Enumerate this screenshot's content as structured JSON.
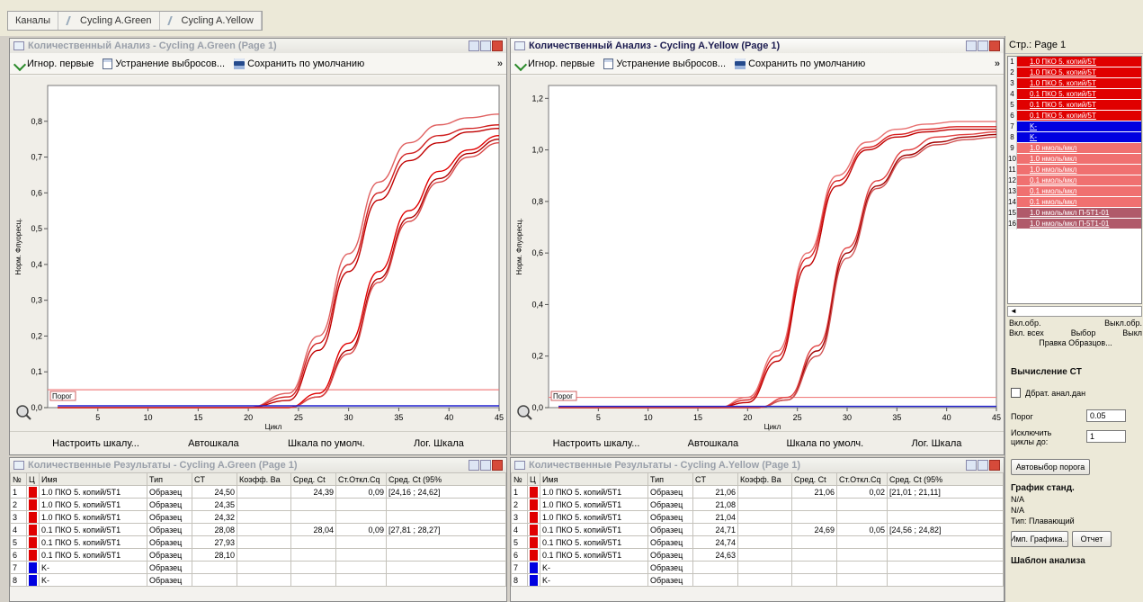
{
  "tabs": [
    {
      "label": "Каналы"
    },
    {
      "label": "Cycling A.Green"
    },
    {
      "label": "Cycling A.Yellow"
    }
  ],
  "toolbar": {
    "ignore_first": "Игнор. первые",
    "remove_outliers": "Устранение выбросов...",
    "save_default": "Сохранить по умолчанию",
    "more": "»"
  },
  "chart_buttons": {
    "adjust": "Настроить шкалу...",
    "auto": "Автошкала",
    "default": "Шкала по умолч.",
    "log": "Лог. Шкала"
  },
  "colors": {
    "red": "#e00000",
    "blue": "#0000e0",
    "pink": "#f08080",
    "mauve": "#b05a6a"
  },
  "green_window": {
    "title": "Количественный Анализ - Cycling A.Green (Page 1)",
    "results_title": "Количественные Результаты - Cycling A.Green (Page 1)"
  },
  "yellow_window": {
    "title": "Количественный Анализ - Cycling A.Yellow (Page 1)",
    "results_title": "Количественные Результаты - Cycling A.Yellow (Page 1)"
  },
  "chart_data": [
    {
      "type": "line",
      "xlabel": "Цикл",
      "ylabel": "Норм. Флуоресц.",
      "xlim": [
        0,
        45
      ],
      "ylim": [
        0,
        0.9
      ],
      "xticks": [
        5,
        10,
        15,
        20,
        25,
        30,
        35,
        40,
        45
      ],
      "yticks": [
        0.0,
        0.1,
        0.2,
        0.3,
        0.4,
        0.5,
        0.6,
        0.7,
        0.8
      ],
      "ytick_labels": [
        "0,0",
        "0,1",
        "0,2",
        "0,3",
        "0,4",
        "0,5",
        "0,6",
        "0,7",
        "0,8"
      ],
      "threshold": 0.05,
      "threshold_label": "Порог",
      "grid": false,
      "series": [
        {
          "color": "#e06060",
          "x": [
            1,
            20,
            24,
            27,
            30,
            33,
            36,
            39,
            42,
            45
          ],
          "y": [
            0.0,
            0.0,
            0.04,
            0.2,
            0.43,
            0.63,
            0.74,
            0.79,
            0.81,
            0.82
          ]
        },
        {
          "color": "#d02020",
          "x": [
            1,
            20,
            24,
            27,
            30,
            33,
            36,
            39,
            42,
            45
          ],
          "y": [
            0.0,
            0.0,
            0.03,
            0.18,
            0.4,
            0.6,
            0.71,
            0.76,
            0.78,
            0.79
          ]
        },
        {
          "color": "#c00000",
          "x": [
            1,
            20,
            24,
            27,
            30,
            33,
            36,
            39,
            42,
            45
          ],
          "y": [
            0.0,
            0.0,
            0.02,
            0.16,
            0.38,
            0.58,
            0.69,
            0.74,
            0.77,
            0.78
          ]
        },
        {
          "color": "#e00000",
          "x": [
            1,
            24,
            27,
            30,
            33,
            36,
            39,
            42,
            45
          ],
          "y": [
            0.0,
            0.0,
            0.04,
            0.18,
            0.38,
            0.55,
            0.66,
            0.72,
            0.76
          ]
        },
        {
          "color": "#b00000",
          "x": [
            1,
            24,
            27,
            30,
            33,
            36,
            39,
            42,
            45
          ],
          "y": [
            0.0,
            0.0,
            0.03,
            0.16,
            0.36,
            0.53,
            0.64,
            0.71,
            0.75
          ]
        },
        {
          "color": "#d84848",
          "x": [
            1,
            24,
            27,
            30,
            33,
            36,
            39,
            42,
            45
          ],
          "y": [
            0.0,
            0.0,
            0.03,
            0.15,
            0.35,
            0.52,
            0.63,
            0.7,
            0.74
          ]
        },
        {
          "color": "#2020d0",
          "x": [
            1,
            45
          ],
          "y": [
            0.005,
            0.005
          ]
        }
      ]
    },
    {
      "type": "line",
      "xlabel": "Цикл",
      "ylabel": "Норм. Флуоресц.",
      "xlim": [
        0,
        45
      ],
      "ylim": [
        0,
        1.25
      ],
      "xticks": [
        5,
        10,
        15,
        20,
        25,
        30,
        35,
        40,
        45
      ],
      "yticks": [
        0.0,
        0.2,
        0.4,
        0.6,
        0.8,
        1.0,
        1.2
      ],
      "ytick_labels": [
        "0,0",
        "0,2",
        "0,4",
        "0,6",
        "0,8",
        "1,0",
        "1,2"
      ],
      "threshold": 0.04,
      "threshold_label": "Порог",
      "grid": false,
      "series": [
        {
          "color": "#e87070",
          "x": [
            1,
            17,
            20,
            23,
            26,
            29,
            32,
            35,
            38,
            41,
            45
          ],
          "y": [
            0.0,
            0.0,
            0.04,
            0.22,
            0.6,
            0.9,
            1.03,
            1.08,
            1.1,
            1.11,
            1.11
          ]
        },
        {
          "color": "#d82020",
          "x": [
            1,
            17,
            20,
            23,
            26,
            29,
            32,
            35,
            38,
            41,
            45
          ],
          "y": [
            0.0,
            0.0,
            0.03,
            0.2,
            0.58,
            0.88,
            1.01,
            1.06,
            1.08,
            1.09,
            1.09
          ]
        },
        {
          "color": "#c00000",
          "x": [
            1,
            17,
            20,
            23,
            26,
            29,
            32,
            35,
            38,
            41,
            45
          ],
          "y": [
            0.0,
            0.0,
            0.02,
            0.18,
            0.55,
            0.86,
            1.0,
            1.05,
            1.07,
            1.08,
            1.08
          ]
        },
        {
          "color": "#e04040",
          "x": [
            1,
            21,
            24,
            27,
            30,
            33,
            36,
            39,
            42,
            45
          ],
          "y": [
            0.0,
            0.0,
            0.04,
            0.24,
            0.62,
            0.88,
            1.0,
            1.05,
            1.06,
            1.07
          ]
        },
        {
          "color": "#a00000",
          "x": [
            1,
            21,
            24,
            27,
            30,
            33,
            36,
            39,
            42,
            45
          ],
          "y": [
            0.0,
            0.0,
            0.03,
            0.22,
            0.6,
            0.86,
            0.98,
            1.03,
            1.05,
            1.06
          ]
        },
        {
          "color": "#d05050",
          "x": [
            1,
            21,
            24,
            27,
            30,
            33,
            36,
            39,
            42,
            45
          ],
          "y": [
            0.0,
            0.0,
            0.03,
            0.2,
            0.58,
            0.85,
            0.97,
            1.02,
            1.04,
            1.05
          ]
        },
        {
          "color": "#2020d0",
          "x": [
            1,
            45
          ],
          "y": [
            0.005,
            0.005
          ]
        }
      ]
    }
  ],
  "green_table": {
    "headers": [
      "№",
      "Ц",
      "Имя",
      "Тип",
      "CT",
      "Коэфф. Ва",
      "Сред. Ct",
      "Ст.Откл.Cq",
      "Сред. Ct (95%"
    ],
    "rows": [
      {
        "n": "1",
        "color": "#e00000",
        "name": "1.0 ПКО 5. копий/5Т1",
        "type": "Образец",
        "ct": "24,50",
        "kf": "",
        "avg": "24,39",
        "sd": "0,09",
        "ci": "[24,16 ; 24,62]"
      },
      {
        "n": "2",
        "color": "#e00000",
        "name": "1.0 ПКО 5. копий/5Т1",
        "type": "Образец",
        "ct": "24,35",
        "kf": "",
        "avg": "",
        "sd": "",
        "ci": ""
      },
      {
        "n": "3",
        "color": "#e00000",
        "name": "1.0 ПКО 5. копий/5Т1",
        "type": "Образец",
        "ct": "24,32",
        "kf": "",
        "avg": "",
        "sd": "",
        "ci": ""
      },
      {
        "n": "4",
        "color": "#e00000",
        "name": "0.1 ПКО 5. копий/5Т1",
        "type": "Образец",
        "ct": "28,08",
        "kf": "",
        "avg": "28,04",
        "sd": "0,09",
        "ci": "[27,81 ; 28,27]"
      },
      {
        "n": "5",
        "color": "#e00000",
        "name": "0.1 ПКО 5. копий/5Т1",
        "type": "Образец",
        "ct": "27,93",
        "kf": "",
        "avg": "",
        "sd": "",
        "ci": ""
      },
      {
        "n": "6",
        "color": "#e00000",
        "name": "0.1 ПКО 5. копий/5Т1",
        "type": "Образец",
        "ct": "28,10",
        "kf": "",
        "avg": "",
        "sd": "",
        "ci": ""
      },
      {
        "n": "7",
        "color": "#0000e0",
        "name": "K-",
        "type": "Образец",
        "ct": "",
        "kf": "",
        "avg": "",
        "sd": "",
        "ci": ""
      },
      {
        "n": "8",
        "color": "#0000e0",
        "name": "K-",
        "type": "Образец",
        "ct": "",
        "kf": "",
        "avg": "",
        "sd": "",
        "ci": ""
      }
    ]
  },
  "yellow_table": {
    "headers": [
      "№",
      "Ц",
      "Имя",
      "Тип",
      "CT",
      "Коэфф. Ва",
      "Сред. Ct",
      "Ст.Откл.Cq",
      "Сред. Ct (95%"
    ],
    "rows": [
      {
        "n": "1",
        "color": "#e00000",
        "name": "1.0 ПКО 5. копий/5Т1",
        "type": "Образец",
        "ct": "21,06",
        "kf": "",
        "avg": "21,06",
        "sd": "0,02",
        "ci": "[21,01 ; 21,11]"
      },
      {
        "n": "2",
        "color": "#e00000",
        "name": "1.0 ПКО 5. копий/5Т1",
        "type": "Образец",
        "ct": "21,08",
        "kf": "",
        "avg": "",
        "sd": "",
        "ci": ""
      },
      {
        "n": "3",
        "color": "#e00000",
        "name": "1.0 ПКО 5. копий/5Т1",
        "type": "Образец",
        "ct": "21,04",
        "kf": "",
        "avg": "",
        "sd": "",
        "ci": ""
      },
      {
        "n": "4",
        "color": "#e00000",
        "name": "0.1 ПКО 5. копий/5Т1",
        "type": "Образец",
        "ct": "24,71",
        "kf": "",
        "avg": "24,69",
        "sd": "0,05",
        "ci": "[24,56 ; 24,82]"
      },
      {
        "n": "5",
        "color": "#e00000",
        "name": "0.1 ПКО 5. копий/5Т1",
        "type": "Образец",
        "ct": "24,74",
        "kf": "",
        "avg": "",
        "sd": "",
        "ci": ""
      },
      {
        "n": "6",
        "color": "#e00000",
        "name": "0.1 ПКО 5. копий/5Т1",
        "type": "Образец",
        "ct": "24,63",
        "kf": "",
        "avg": "",
        "sd": "",
        "ci": ""
      },
      {
        "n": "7",
        "color": "#0000e0",
        "name": "K-",
        "type": "Образец",
        "ct": "",
        "kf": "",
        "avg": "",
        "sd": "",
        "ci": ""
      },
      {
        "n": "8",
        "color": "#0000e0",
        "name": "K-",
        "type": "Образец",
        "ct": "",
        "kf": "",
        "avg": "",
        "sd": "",
        "ci": ""
      }
    ]
  },
  "right_panel": {
    "page_label": "Стр.: Page 1",
    "samples": [
      {
        "n": "1",
        "label": "1.0 ПКО 5. копий/5Т",
        "color": "#e00000"
      },
      {
        "n": "2",
        "label": "1.0 ПКО 5. копий/5Т",
        "color": "#e00000"
      },
      {
        "n": "3",
        "label": "1.0 ПКО 5. копий/5Т",
        "color": "#e00000"
      },
      {
        "n": "4",
        "label": "0.1 ПКО 5. копий/5Т",
        "color": "#e00000"
      },
      {
        "n": "5",
        "label": "0.1 ПКО 5. копий/5Т",
        "color": "#e00000"
      },
      {
        "n": "6",
        "label": "0.1 ПКО 5. копий/5Т",
        "color": "#e00000"
      },
      {
        "n": "7",
        "label": "K-",
        "color": "#0000e0"
      },
      {
        "n": "8",
        "label": "K-",
        "color": "#0000e0"
      },
      {
        "n": "9",
        "label": "1.0 нмоль/мкл",
        "color": "#f07070"
      },
      {
        "n": "10",
        "label": "1.0 нмоль/мкл",
        "color": "#f07070"
      },
      {
        "n": "11",
        "label": "1.0 нмоль/мкл",
        "color": "#f07070"
      },
      {
        "n": "12",
        "label": "0.1 нмоль/мкл",
        "color": "#f07070"
      },
      {
        "n": "13",
        "label": "0.1 нмоль/мкл",
        "color": "#f07070"
      },
      {
        "n": "14",
        "label": "0.1 нмоль/мкл",
        "color": "#f07070"
      },
      {
        "n": "15",
        "label": "1.0 нмоль/мкл П-5Т1-01",
        "color": "#b05a6a"
      },
      {
        "n": "16",
        "label": "1.0 нмоль/мкл П-5Т1-01",
        "color": "#b05a6a"
      }
    ],
    "btn_row1": [
      "Вкл.обр.",
      "Выкл.обр."
    ],
    "btn_row2": [
      "Вкл. всех",
      "Выбор",
      "Выкл"
    ],
    "edit_samples": "Правка Образцов...",
    "ct_heading": "Вычисление CT",
    "dyn_range": "Дбрат. анал.дан",
    "threshold_label": "Порог",
    "threshold_value": "0.05",
    "exclude_label": "Исключить циклы до:",
    "exclude_value": "1",
    "auto_threshold": "Автовыбор порога",
    "std_graph_heading": "График станд.",
    "na1": "N/A",
    "na2": "N/A",
    "type_label": "Тип: Плавающий",
    "graph_btn": "Имп. Графика...",
    "report_btn": "Отчет",
    "template_heading": "Шаблон анализа"
  }
}
